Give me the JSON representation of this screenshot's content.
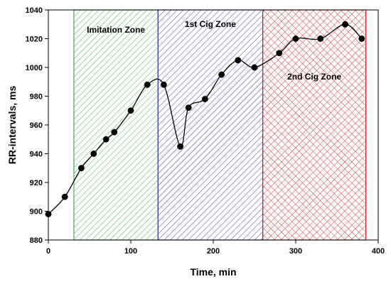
{
  "chart_data": {
    "type": "line",
    "title": "",
    "xlabel": "Time, min",
    "ylabel": "RR-intervals, ms",
    "xlim": [
      0,
      400
    ],
    "ylim": [
      880,
      1040
    ],
    "xticks": [
      0,
      100,
      200,
      300,
      400
    ],
    "yticks": [
      880,
      900,
      920,
      940,
      960,
      980,
      1000,
      1020,
      1040
    ],
    "grid": false,
    "series": [
      {
        "name": "",
        "color": "#000000",
        "smooth": true,
        "points": [
          {
            "x": 0,
            "y": 898
          },
          {
            "x": 20,
            "y": 910
          },
          {
            "x": 40,
            "y": 930
          },
          {
            "x": 55,
            "y": 940
          },
          {
            "x": 70,
            "y": 950
          },
          {
            "x": 80,
            "y": 955
          },
          {
            "x": 100,
            "y": 970
          },
          {
            "x": 120,
            "y": 988
          },
          {
            "x": 140,
            "y": 988
          },
          {
            "x": 160,
            "y": 945
          },
          {
            "x": 170,
            "y": 972
          },
          {
            "x": 190,
            "y": 978
          },
          {
            "x": 210,
            "y": 995
          },
          {
            "x": 230,
            "y": 1005
          },
          {
            "x": 250,
            "y": 1000
          },
          {
            "x": 280,
            "y": 1010
          },
          {
            "x": 300,
            "y": 1020
          },
          {
            "x": 330,
            "y": 1020
          },
          {
            "x": 360,
            "y": 1030
          },
          {
            "x": 380,
            "y": 1020
          }
        ]
      }
    ],
    "zones": [
      {
        "label": "Imitation Zone",
        "x_start": 31,
        "x_end": 133,
        "color": "#3cb44b",
        "pattern": "diagonal"
      },
      {
        "label": "1st Cig Zone",
        "x_start": 133,
        "x_end": 260,
        "color": "#3a3aa8",
        "pattern": "diagonal"
      },
      {
        "label": "2nd Cig Zone",
        "x_start": 260,
        "x_end": 385,
        "color": "#d42020",
        "pattern": "crosshatch"
      }
    ]
  }
}
